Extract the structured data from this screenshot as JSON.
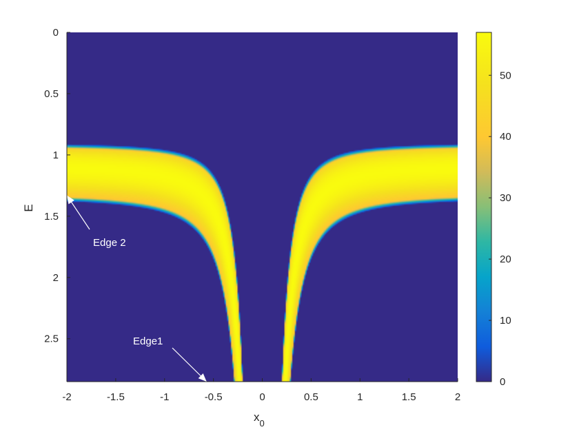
{
  "chart_data": {
    "type": "heatmap",
    "xlabel": "x",
    "xlabel_subscript": "0",
    "ylabel": "E",
    "xlim": [
      -2,
      2
    ],
    "ylim": [
      0,
      2.85
    ],
    "y_reversed": true,
    "x_ticks": [
      -2,
      -1.5,
      -1,
      -0.5,
      0,
      0.5,
      1,
      1.5,
      2
    ],
    "x_tick_labels": [
      "-2",
      "-1.5",
      "-1",
      "-0.5",
      "0",
      "0.5",
      "1",
      "1.5",
      "2"
    ],
    "y_ticks": [
      0,
      0.5,
      1,
      1.5,
      2,
      2.5
    ],
    "y_tick_labels": [
      "0",
      "0.5",
      "1",
      "1.5",
      "2",
      "2.5"
    ],
    "colorbar": {
      "colormap": "parula",
      "range": [
        0,
        57
      ],
      "ticks": [
        0,
        10,
        20,
        30,
        40,
        50
      ],
      "tick_labels": [
        "0",
        "10",
        "20",
        "30",
        "40",
        "50"
      ]
    },
    "band": {
      "description_values": "symmetric band; inner edge E = 1/|x0|^2 region",
      "edge_curve_x": [
        0.15,
        0.2,
        0.3,
        0.4,
        0.5,
        0.6,
        0.7,
        0.8,
        1.0,
        1.2,
        1.5,
        2.0
      ],
      "inner_edge_x_at_bottom": 0.17,
      "outer_edge_x_at_bottom": 0.6,
      "peak_value": 57,
      "background_value": 0
    },
    "annotations": [
      {
        "text": "Edge 2",
        "arrow_to": [
          -2,
          1.33
        ]
      },
      {
        "text": "Edge1",
        "arrow_to": [
          -0.57,
          2.85
        ]
      }
    ]
  }
}
